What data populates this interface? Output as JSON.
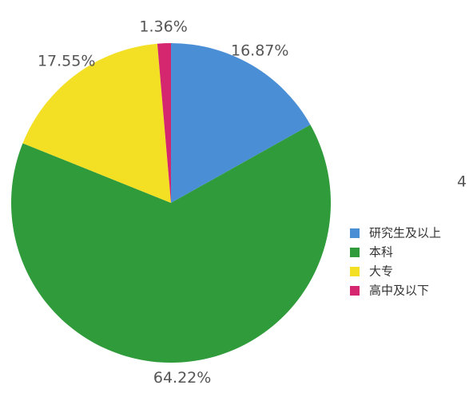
{
  "chart_data": {
    "type": "pie",
    "categories": [
      "研究生及以上",
      "本科",
      "大专",
      "高中及以下"
    ],
    "values": [
      16.87,
      64.22,
      17.55,
      1.36
    ],
    "value_labels": [
      "16.87%",
      "64.22%",
      "17.55%",
      "1.36%"
    ],
    "colors": [
      "#4a8fd6",
      "#2f9b3a",
      "#f3e024",
      "#d4276f"
    ],
    "annotation": "4"
  }
}
